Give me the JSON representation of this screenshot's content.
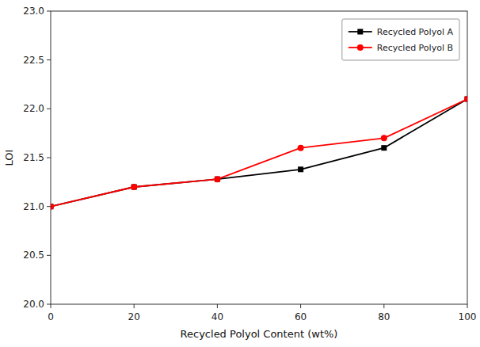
{
  "chart_data": {
    "type": "line",
    "xlabel": "Recycled Polyol Content (wt%)",
    "ylabel": "LOI",
    "x": [
      0,
      20,
      40,
      60,
      80,
      100
    ],
    "series": [
      {
        "name": "Recycled Polyol A",
        "color": "#000000",
        "marker": "square",
        "values": [
          21.0,
          21.2,
          21.28,
          21.38,
          21.6,
          22.1
        ]
      },
      {
        "name": "Recycled Polyol B",
        "color": "#ff0000",
        "marker": "circle",
        "values": [
          21.0,
          21.2,
          21.28,
          21.6,
          21.7,
          22.1
        ]
      }
    ],
    "xlim": [
      0,
      100
    ],
    "ylim": [
      20.0,
      23.0
    ],
    "xticks": [
      0,
      20,
      40,
      60,
      80,
      100
    ],
    "yticks": [
      {
        "value": 20.0,
        "label": "20.0"
      },
      {
        "value": 20.5,
        "label": "20.5"
      },
      {
        "value": 21.0,
        "label": "21.0"
      },
      {
        "value": 21.5,
        "label": "21.5"
      },
      {
        "value": 22.0,
        "label": "22.0"
      },
      {
        "value": 22.5,
        "label": "22.5"
      },
      {
        "value": 23.0,
        "label": "23.0"
      }
    ],
    "grid": false,
    "legend": "upper right"
  }
}
